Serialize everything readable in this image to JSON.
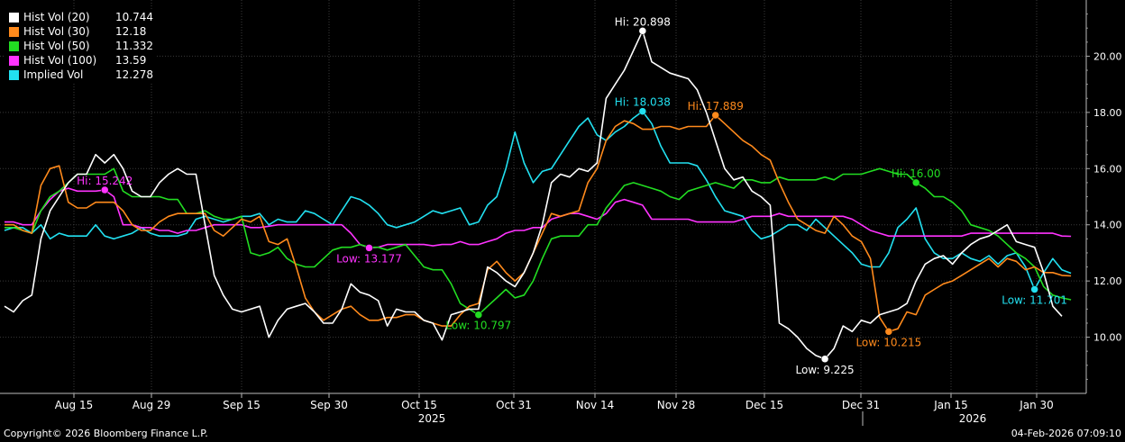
{
  "chart_data": {
    "type": "line",
    "title": "",
    "y_axis": {
      "position": "right",
      "ticks": [
        "10.00",
        "12.00",
        "14.00",
        "16.00",
        "18.00",
        "20.00"
      ],
      "range": [
        8.0,
        22.0
      ]
    },
    "x_axis": {
      "ticks": [
        "Aug 15",
        "Aug 29",
        "Sep 15",
        "Sep 30",
        "Oct 15",
        "Oct 31",
        "Nov 14",
        "Nov 28",
        "Dec 15",
        "Dec 31",
        "Jan 15",
        "Jan 30"
      ],
      "year_labels": [
        "2025",
        "2026"
      ]
    },
    "grid": true,
    "legend_position": "top-left",
    "series": [
      {
        "name": "Hist Vol (20)",
        "last": "10.744",
        "color": "#ffffff",
        "values": [
          11.1,
          10.9,
          11.3,
          11.5,
          13.5,
          14.5,
          15.0,
          15.5,
          15.8,
          15.8,
          16.5,
          16.2,
          16.5,
          16.0,
          15.2,
          15.0,
          15.0,
          15.5,
          15.8,
          16.0,
          15.8,
          15.8,
          14.0,
          12.2,
          11.5,
          11.0,
          10.9,
          11.0,
          11.1,
          10.0,
          10.6,
          11.0,
          11.1,
          11.2,
          10.9,
          10.5,
          10.5,
          11.0,
          11.9,
          11.6,
          11.5,
          11.3,
          10.4,
          11.0,
          10.9,
          10.9,
          10.6,
          10.5,
          9.9,
          10.8,
          10.9,
          11.0,
          11.0,
          12.5,
          12.3,
          12.0,
          11.8,
          12.3,
          13.0,
          14.0,
          15.5,
          15.8,
          15.7,
          16.0,
          15.9,
          16.2,
          18.5,
          19.0,
          19.5,
          20.2,
          20.9,
          19.8,
          19.6,
          19.4,
          19.3,
          19.2,
          18.8,
          18.0,
          17.0,
          16.0,
          15.6,
          15.7,
          15.2,
          15.0,
          14.7,
          10.5,
          10.3,
          10.0,
          9.6,
          9.35,
          9.225,
          9.6,
          10.4,
          10.2,
          10.6,
          10.5,
          10.8,
          10.9,
          11.0,
          11.2,
          12.0,
          12.6,
          12.8,
          12.9,
          12.6,
          13.0,
          13.3,
          13.5,
          13.6,
          13.8,
          14.0,
          13.4,
          13.3,
          13.2,
          12.3,
          11.1,
          10.744
        ]
      },
      {
        "name": "Hist Vol (30)",
        "last": "12.18",
        "color": "#ff8a1c",
        "values": [
          14.0,
          14.0,
          13.8,
          13.7,
          15.4,
          16.0,
          16.1,
          14.8,
          14.6,
          14.6,
          14.8,
          14.8,
          14.8,
          14.5,
          14.0,
          13.8,
          13.8,
          14.1,
          14.3,
          14.4,
          14.4,
          14.4,
          14.4,
          13.8,
          13.6,
          13.9,
          14.2,
          14.1,
          14.3,
          13.4,
          13.3,
          13.5,
          12.5,
          11.4,
          10.9,
          10.6,
          10.8,
          11.0,
          11.1,
          10.8,
          10.6,
          10.6,
          10.7,
          10.7,
          10.8,
          10.8,
          10.6,
          10.5,
          10.4,
          10.4,
          10.8,
          11.1,
          11.2,
          12.4,
          12.7,
          12.3,
          12.0,
          12.3,
          13.0,
          13.7,
          14.4,
          14.3,
          14.4,
          14.5,
          15.5,
          16.0,
          17.0,
          17.5,
          17.7,
          17.6,
          17.4,
          17.4,
          17.5,
          17.5,
          17.4,
          17.5,
          17.5,
          17.5,
          17.9,
          17.6,
          17.3,
          17.0,
          16.8,
          16.5,
          16.3,
          15.5,
          14.8,
          14.2,
          14.0,
          13.8,
          13.7,
          14.3,
          14.0,
          13.6,
          13.4,
          12.8,
          10.7,
          10.2,
          10.3,
          10.9,
          10.8,
          11.5,
          11.7,
          11.9,
          12.0,
          12.2,
          12.4,
          12.6,
          12.8,
          12.5,
          12.8,
          12.7,
          12.4,
          12.5,
          12.3,
          12.3,
          12.2,
          12.18
        ]
      },
      {
        "name": "Hist Vol (50)",
        "last": "11.332",
        "color": "#22dd22",
        "values": [
          13.9,
          13.9,
          13.8,
          13.7,
          14.5,
          15.0,
          15.2,
          15.5,
          15.8,
          15.8,
          15.8,
          15.8,
          16.0,
          15.2,
          15.0,
          15.0,
          15.0,
          15.0,
          14.9,
          14.9,
          14.4,
          14.4,
          14.5,
          14.3,
          14.2,
          14.2,
          14.3,
          13.0,
          12.9,
          13.0,
          13.2,
          12.8,
          12.6,
          12.5,
          12.5,
          12.8,
          13.1,
          13.2,
          13.2,
          13.3,
          13.2,
          13.2,
          13.1,
          13.2,
          13.3,
          12.9,
          12.5,
          12.4,
          12.4,
          11.9,
          11.2,
          11.0,
          10.797,
          11.1,
          11.4,
          11.7,
          11.4,
          11.5,
          12.0,
          12.8,
          13.5,
          13.6,
          13.6,
          13.6,
          14.0,
          14.0,
          14.6,
          15.0,
          15.4,
          15.5,
          15.4,
          15.3,
          15.2,
          15.0,
          14.9,
          15.2,
          15.3,
          15.4,
          15.5,
          15.4,
          15.3,
          15.6,
          15.6,
          15.5,
          15.5,
          15.7,
          15.6,
          15.6,
          15.6,
          15.6,
          15.7,
          15.6,
          15.8,
          15.8,
          15.8,
          15.9,
          16.0,
          15.9,
          15.8,
          15.8,
          15.5,
          15.3,
          15.0,
          15.0,
          14.8,
          14.5,
          14.0,
          13.9,
          13.8,
          13.6,
          13.3,
          13.0,
          12.8,
          12.5,
          11.8,
          11.5,
          11.4,
          11.332
        ]
      },
      {
        "name": "Hist Vol (100)",
        "last": "13.59",
        "color": "#ff33ff",
        "values": [
          14.1,
          14.1,
          14.0,
          14.0,
          14.5,
          14.9,
          15.2,
          15.3,
          15.2,
          15.2,
          15.2,
          15.24,
          15.0,
          14.0,
          14.0,
          13.9,
          13.9,
          13.8,
          13.8,
          13.7,
          13.8,
          13.8,
          13.9,
          14.0,
          14.0,
          14.0,
          14.0,
          13.9,
          13.9,
          13.95,
          14.0,
          14.0,
          14.0,
          14.0,
          14.0,
          14.0,
          14.0,
          14.0,
          13.7,
          13.3,
          13.177,
          13.2,
          13.3,
          13.3,
          13.3,
          13.3,
          13.3,
          13.25,
          13.3,
          13.3,
          13.4,
          13.3,
          13.3,
          13.4,
          13.5,
          13.7,
          13.8,
          13.8,
          13.9,
          13.9,
          14.2,
          14.3,
          14.4,
          14.4,
          14.3,
          14.2,
          14.4,
          14.8,
          14.9,
          14.8,
          14.7,
          14.2,
          14.2,
          14.2,
          14.2,
          14.2,
          14.1,
          14.1,
          14.1,
          14.1,
          14.1,
          14.2,
          14.3,
          14.3,
          14.3,
          14.4,
          14.3,
          14.3,
          14.3,
          14.3,
          14.3,
          14.3,
          14.3,
          14.2,
          14.0,
          13.8,
          13.7,
          13.6,
          13.6,
          13.6,
          13.6,
          13.6,
          13.6,
          13.6,
          13.6,
          13.6,
          13.7,
          13.7,
          13.7,
          13.7,
          13.7,
          13.7,
          13.7,
          13.7,
          13.7,
          13.7,
          13.6,
          13.59
        ]
      },
      {
        "name": "Implied Vol",
        "last": "12.278",
        "color": "#22e0f0",
        "values": [
          13.8,
          13.9,
          13.9,
          13.7,
          14.0,
          13.5,
          13.7,
          13.6,
          13.6,
          13.6,
          14.0,
          13.6,
          13.5,
          13.6,
          13.7,
          13.9,
          13.7,
          13.6,
          13.6,
          13.6,
          13.7,
          14.2,
          14.3,
          14.2,
          14.1,
          14.2,
          14.3,
          14.3,
          14.4,
          14.0,
          14.2,
          14.1,
          14.1,
          14.5,
          14.4,
          14.2,
          14.0,
          14.5,
          15.0,
          14.9,
          14.7,
          14.4,
          14.0,
          13.9,
          14.0,
          14.1,
          14.3,
          14.5,
          14.4,
          14.5,
          14.6,
          14.0,
          14.1,
          14.7,
          15.0,
          16.0,
          17.3,
          16.2,
          15.5,
          15.9,
          16.0,
          16.5,
          17.0,
          17.5,
          17.8,
          17.2,
          17.0,
          17.3,
          17.5,
          17.8,
          18.038,
          17.6,
          16.8,
          16.2,
          16.2,
          16.2,
          16.1,
          15.6,
          15.0,
          14.5,
          14.4,
          14.3,
          13.8,
          13.5,
          13.6,
          13.8,
          14.0,
          14.0,
          13.8,
          14.2,
          13.9,
          13.6,
          13.3,
          13.0,
          12.6,
          12.5,
          12.5,
          13.0,
          13.9,
          14.2,
          14.6,
          13.5,
          13.0,
          12.8,
          12.8,
          13.0,
          12.8,
          12.7,
          12.9,
          12.6,
          12.9,
          13.0,
          12.5,
          11.701,
          12.3,
          12.8,
          12.4,
          12.278
        ]
      }
    ],
    "annotations": [
      {
        "text": "Hi: 20.898",
        "series": 0,
        "index": 70,
        "place": "above"
      },
      {
        "text": "Low: 9.225",
        "series": 0,
        "index": 90,
        "place": "below"
      },
      {
        "text": "Hi: 17.889",
        "series": 1,
        "index": 78,
        "place": "above"
      },
      {
        "text": "Low: 10.215",
        "series": 1,
        "index": 97,
        "place": "below"
      },
      {
        "text": "Low: 10.797",
        "series": 2,
        "index": 52,
        "place": "below"
      },
      {
        "text": "Hi: 16.00",
        "series": 2,
        "index": 100,
        "place": "above"
      },
      {
        "text": "Hi: 15.242",
        "series": 3,
        "index": 11,
        "place": "above"
      },
      {
        "text": "Low: 13.177",
        "series": 3,
        "index": 40,
        "place": "below"
      },
      {
        "text": "Hi: 18.038",
        "series": 4,
        "index": 70,
        "place": "above"
      },
      {
        "text": "Low: 11.701",
        "series": 4,
        "index": 113,
        "place": "below"
      }
    ]
  },
  "footer": {
    "copyright": "Copyright© 2026 Bloomberg Finance L.P.",
    "timestamp": "04-Feb-2026 07:09:10"
  }
}
